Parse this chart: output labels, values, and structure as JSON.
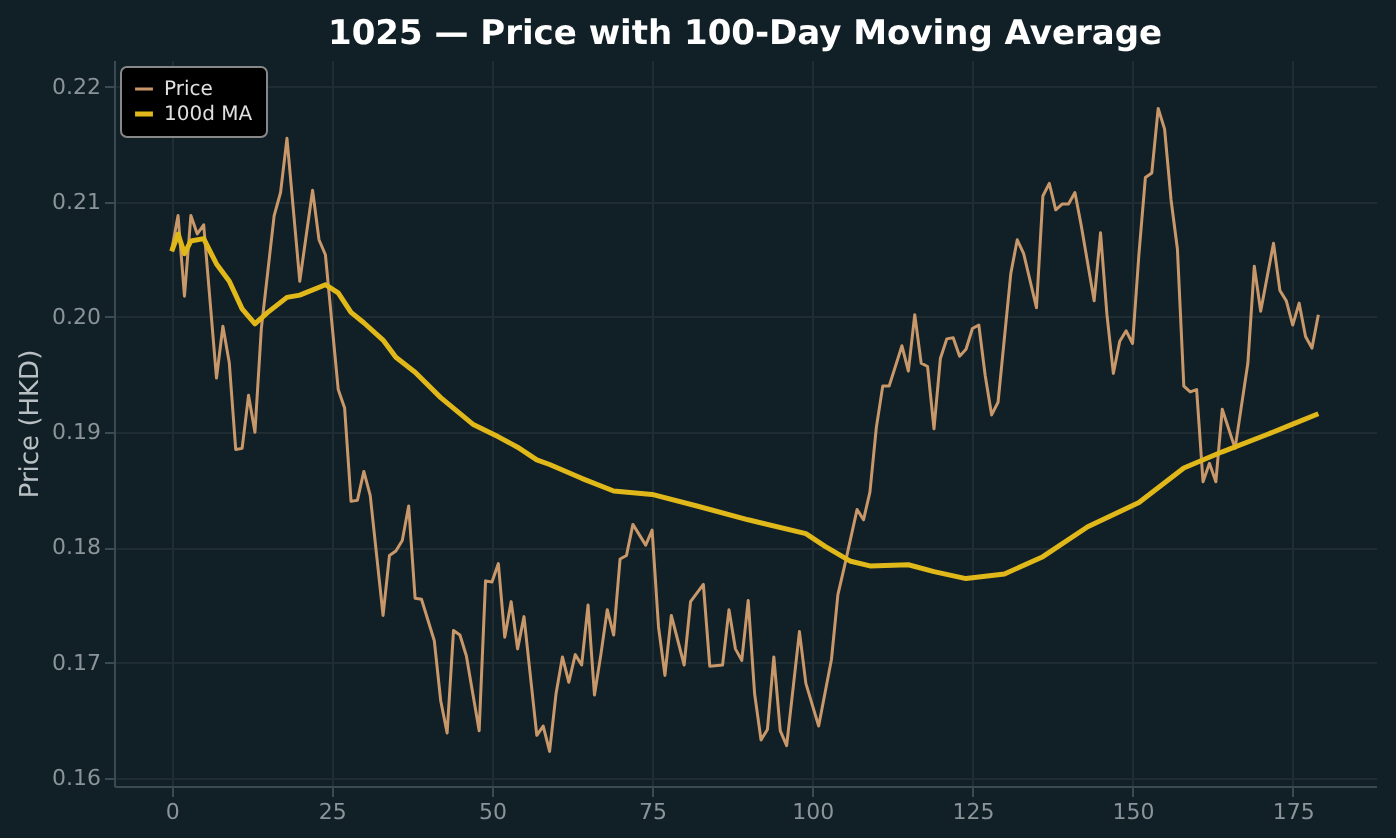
{
  "chart_data": {
    "type": "line",
    "title": "1025 — Price with 100-Day Moving Average",
    "ylabel": "Price (HKD)",
    "xlim": [
      -9,
      188
    ],
    "xticks": [
      0,
      25,
      50,
      75,
      100,
      125,
      150,
      175
    ],
    "ylim": [
      0.1593,
      0.2223
    ],
    "yticks": [
      0.16,
      0.17,
      0.18,
      0.19,
      {
        "value": 0.2,
        "label": "0.20"
      },
      0.21,
      0.22
    ],
    "grid": true,
    "legend": "top left",
    "line_style": "solid",
    "marker": "none",
    "series": [
      {
        "name": "Price",
        "color": "#c8986a",
        "x": [
          0,
          1,
          2,
          3,
          4,
          5,
          7,
          8,
          9,
          10,
          11,
          12,
          13,
          14,
          16,
          17,
          18,
          20,
          22,
          23,
          24,
          26,
          27,
          28,
          29,
          30,
          31,
          33,
          34,
          35,
          36,
          37,
          38,
          39,
          41,
          42,
          43,
          44,
          45,
          46,
          48,
          49,
          50,
          51,
          52,
          53,
          54,
          55,
          57,
          58,
          59,
          60,
          61,
          62,
          63,
          64,
          65,
          66,
          67,
          68,
          69,
          70,
          71,
          72,
          74,
          75,
          76,
          77,
          78,
          80,
          81,
          83,
          84,
          86,
          87,
          88,
          89,
          90,
          91,
          92,
          93,
          94,
          95,
          96,
          98,
          99,
          101,
          103,
          104,
          105,
          107,
          108,
          109,
          110,
          111,
          112,
          114,
          115,
          116,
          117,
          118,
          119,
          120,
          121,
          122,
          123,
          124,
          125,
          126,
          127,
          128,
          129,
          131,
          132,
          133,
          135,
          136,
          137,
          138,
          139,
          140,
          141,
          142,
          144,
          145,
          146,
          147,
          148,
          149,
          150,
          151,
          152,
          153,
          154,
          155,
          156,
          157,
          158,
          159,
          160,
          161,
          162,
          163,
          164,
          166,
          168,
          169,
          170,
          172,
          173,
          174,
          175,
          176,
          177,
          178,
          179
        ],
        "values": [
          0.2058,
          0.2088,
          0.2018,
          0.2088,
          0.2072,
          0.208,
          0.1947,
          0.1992,
          0.196,
          0.1885,
          0.1886,
          0.1932,
          0.19,
          0.199,
          0.2088,
          0.2108,
          0.2155,
          0.2031,
          0.211,
          0.2067,
          0.2054,
          0.1937,
          0.1921,
          0.184,
          0.1841,
          0.1866,
          0.1845,
          0.1741,
          0.1793,
          0.1797,
          0.1806,
          0.1836,
          0.1756,
          0.1755,
          0.1719,
          0.1667,
          0.1639,
          0.1728,
          0.1724,
          0.1706,
          0.1641,
          0.1771,
          0.177,
          0.1786,
          0.1722,
          0.1753,
          0.1712,
          0.174,
          0.1637,
          0.1645,
          0.1623,
          0.1673,
          0.1705,
          0.1683,
          0.1707,
          0.1698,
          0.175,
          0.1672,
          0.1707,
          0.1746,
          0.1724,
          0.179,
          0.1793,
          0.182,
          0.1802,
          0.1815,
          0.1731,
          0.1689,
          0.1741,
          0.1698,
          0.1753,
          0.1768,
          0.1697,
          0.1698,
          0.1746,
          0.1712,
          0.1702,
          0.1754,
          0.1673,
          0.1633,
          0.1642,
          0.1705,
          0.1641,
          0.1628,
          0.1727,
          0.1682,
          0.1645,
          0.1703,
          0.1759,
          0.1783,
          0.1833,
          0.1824,
          0.1848,
          0.1904,
          0.194,
          0.194,
          0.1975,
          0.1953,
          0.2002,
          0.196,
          0.1957,
          0.1903,
          0.1964,
          0.1981,
          0.1982,
          0.1966,
          0.1972,
          0.199,
          0.1993,
          0.1949,
          0.1915,
          0.1926,
          0.2038,
          0.2067,
          0.2055,
          0.2008,
          0.2105,
          0.2116,
          0.2093,
          0.2098,
          0.2098,
          0.2108,
          0.2079,
          0.2014,
          0.2073,
          0.2002,
          0.1951,
          0.1979,
          0.1988,
          0.1977,
          0.2055,
          0.2121,
          0.2125,
          0.2181,
          0.2163,
          0.2102,
          0.2059,
          0.194,
          0.1935,
          0.1937,
          0.1857,
          0.1873,
          0.1857,
          0.192,
          0.1886,
          0.196,
          0.2044,
          0.2005,
          0.2064,
          0.2023,
          0.2014,
          0.1993,
          0.2012,
          0.1983,
          0.1973,
          0.2002
        ]
      },
      {
        "name": "100d MA",
        "color": "#e0b81a",
        "x": [
          0,
          1,
          2,
          3,
          5,
          7,
          9,
          11,
          13,
          15,
          18,
          20,
          24,
          26,
          28,
          30,
          33,
          35,
          38,
          42,
          47,
          51,
          54,
          57,
          59,
          64,
          69,
          75,
          82,
          90,
          99,
          102,
          106,
          109,
          115,
          119,
          124,
          130,
          136,
          143,
          151,
          158,
          164,
          171,
          175,
          179
        ],
        "values": [
          0.2057,
          0.2072,
          0.2055,
          0.2066,
          0.2068,
          0.2046,
          0.2031,
          0.2007,
          0.1994,
          0.2004,
          0.2017,
          0.2019,
          0.2028,
          0.2021,
          0.2004,
          0.1995,
          0.198,
          0.1965,
          0.1952,
          0.193,
          0.1907,
          0.1896,
          0.1887,
          0.1876,
          0.1872,
          0.186,
          0.1849,
          0.1846,
          0.1836,
          0.1824,
          0.1812,
          0.1801,
          0.1788,
          0.1784,
          0.1785,
          0.1779,
          0.1773,
          0.1777,
          0.1792,
          0.1818,
          0.1839,
          0.1869,
          0.1883,
          0.1898,
          0.1907,
          0.1916
        ]
      }
    ]
  }
}
